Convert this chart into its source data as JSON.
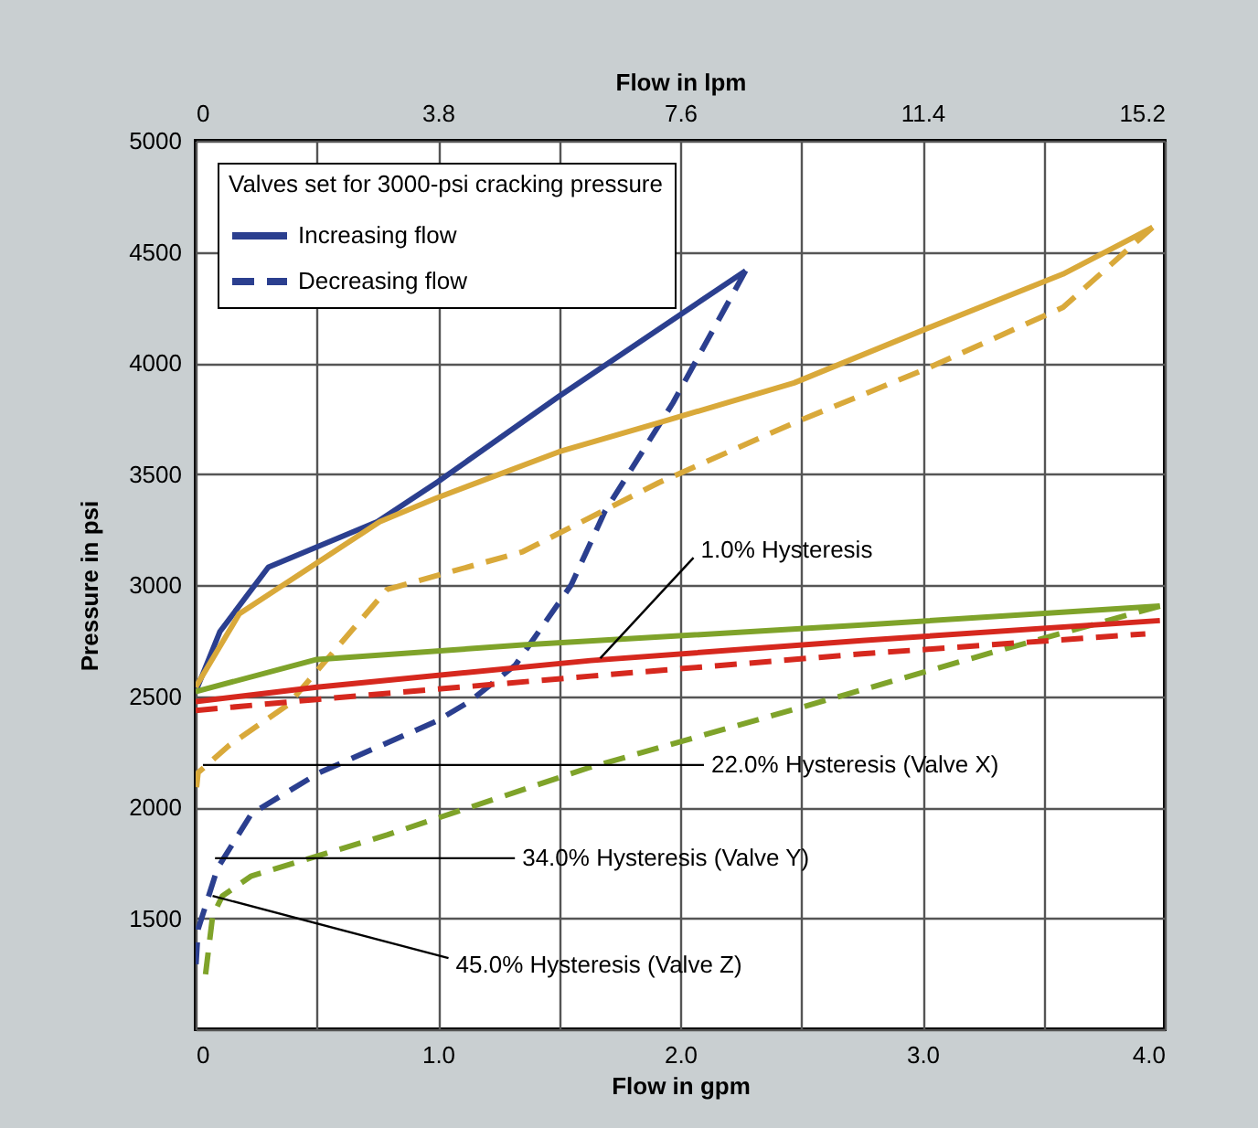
{
  "chart_data": {
    "type": "line",
    "xlabel": "Flow in gpm",
    "x2label": "Flow in lpm",
    "ylabel": "Pressure in psi",
    "legend_title": "Valves set for 3000-psi cracking pressure",
    "xlim": [
      0,
      4
    ],
    "xticks": [
      0,
      {
        "value": 0.5,
        "label": null
      },
      {
        "value": 1,
        "label": "1.0"
      },
      {
        "value": 1.5,
        "label": null
      },
      {
        "value": 2,
        "label": "2.0"
      },
      {
        "value": 2.5,
        "label": null
      },
      {
        "value": 3,
        "label": "3.0"
      },
      {
        "value": 3.5,
        "label": null
      },
      {
        "value": 4,
        "label": "4.0"
      }
    ],
    "x2lim": [
      0,
      15.2
    ],
    "x2ticks": [
      0,
      3.8,
      7.6,
      11.4,
      15.2
    ],
    "ylim": [
      1000,
      5000
    ],
    "yticks": [
      {
        "value": 1000,
        "label": null
      },
      1500,
      2000,
      2500,
      3000,
      3500,
      4000,
      4500,
      5000
    ],
    "grid": true,
    "legend": "top left",
    "series": [
      {
        "name": "Increasing flow",
        "color": "#2b3f8f",
        "line_style": "solid",
        "x": [
          0,
          0.1,
          0.3,
          0.75,
          1.0,
          1.5,
          2.27
        ],
        "values": [
          2520,
          2790,
          3080,
          3285,
          3465,
          3850,
          4415
        ]
      },
      {
        "name": "Decreasing flow",
        "color": "#2b3f8f",
        "line_style": "dashed",
        "x": [
          2.27,
          1.97,
          1.69,
          1.55,
          1.32,
          1.13,
          0.99,
          0.51,
          0.23,
          0.09,
          0.01,
          0
        ],
        "values": [
          4415,
          3820,
          3333,
          3000,
          2640,
          2475,
          2385,
          2155,
          1970,
          1725,
          1450,
          1265
        ]
      },
      {
        "color": "#d9a93a",
        "line_style": "solid",
        "x": [
          0,
          0.18,
          0.76,
          0.99,
          1.5,
          1.91,
          2.47,
          3.03,
          3.58,
          3.95
        ],
        "values": [
          2540,
          2870,
          3285,
          3390,
          3600,
          3730,
          3910,
          4160,
          4400,
          4610
        ]
      },
      {
        "color": "#d9a93a",
        "line_style": "dashed",
        "x": [
          3.95,
          3.58,
          3.03,
          2.47,
          1.91,
          1.35,
          0.79,
          0.38,
          0.14,
          0.01,
          0
        ],
        "values": [
          4610,
          4250,
          3980,
          3730,
          3460,
          3150,
          2980,
          2460,
          2280,
          2155,
          2050
        ]
      },
      {
        "color": "#7fa32a",
        "line_style": "solid",
        "x": [
          0,
          0.5,
          1.35,
          2.75,
          3.98
        ],
        "values": [
          2520,
          2665,
          2730,
          2820,
          2905
        ]
      },
      {
        "color": "#7fa32a",
        "line_style": "dashed",
        "x": [
          3.98,
          3.3,
          2.47,
          1.63,
          0.79,
          0.23,
          0.11,
          0.07,
          0.04
        ],
        "values": [
          2905,
          2700,
          2440,
          2180,
          1875,
          1690,
          1600,
          1510,
          1240
        ]
      },
      {
        "color": "#d6281e",
        "line_style": "solid",
        "x": [
          0,
          0.5,
          1.63,
          2.75,
          3.98
        ],
        "values": [
          2475,
          2540,
          2660,
          2750,
          2840
        ]
      },
      {
        "color": "#d6281e",
        "line_style": "dashed",
        "x": [
          0,
          0.5,
          1.63,
          2.75,
          3.92
        ],
        "values": [
          2435,
          2485,
          2590,
          2690,
          2780
        ]
      }
    ],
    "annotations": [
      {
        "text": "1.0% Hysteresis",
        "x": 1.67,
        "y": 2670
      },
      {
        "text": "22.0% Hysteresis (Valve X)",
        "x": 0.03,
        "y": 2190
      },
      {
        "text": "34.0% Hysteresis (Valve Y)",
        "x": 0.08,
        "y": 1770
      },
      {
        "text": "45.0% Hysteresis (Valve Z)",
        "x": 0.07,
        "y": 1600
      }
    ]
  }
}
